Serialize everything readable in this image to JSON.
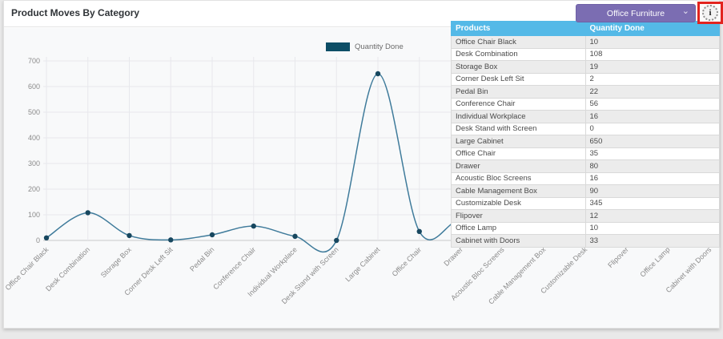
{
  "header": {
    "title": "Product Moves By Category",
    "dropdown": {
      "selected": "Office Furniture",
      "chevron": "⌄"
    },
    "info_button": {
      "glyph": "i"
    }
  },
  "legend": {
    "label": "Quantity Done"
  },
  "colors": {
    "accent_purple": "#7b6db2",
    "table_header_blue": "#54b9e7",
    "line": "#3f7b9b",
    "point": "#17475f",
    "legend_swatch": "#0d4e66",
    "annotation_red": "#e2241f",
    "grid": "#e7e8ec",
    "axis": "#c9c9c9",
    "tick_text": "#8b8b8b"
  },
  "chart_data": {
    "type": "line",
    "title": "Product Moves By Category",
    "categories": [
      "Office Chair Black",
      "Desk Combination",
      "Storage Box",
      "Corner Desk Left Sit",
      "Pedal Bin",
      "Conference Chair",
      "Individual Workplace",
      "Desk Stand with Screen",
      "Large Cabinet",
      "Office Chair",
      "Drawer",
      "Acoustic Bloc Screens",
      "Cable Management Box",
      "Customizable Desk",
      "Flipover",
      "Office Lamp",
      "Cabinet with Doors"
    ],
    "series": [
      {
        "name": "Quantity Done",
        "values": [
          10,
          108,
          19,
          2,
          22,
          56,
          16,
          0,
          650,
          35,
          80,
          16,
          90,
          345,
          12,
          10,
          33
        ]
      }
    ],
    "xlabel": "",
    "ylabel": "",
    "ylim": [
      0,
      700
    ],
    "ytick_step": 100,
    "grid": true,
    "smooth": true,
    "legend_position": "top-center"
  },
  "table": {
    "headers": [
      "Products",
      "Quantity Done"
    ],
    "rows": [
      [
        "Office Chair Black",
        "10"
      ],
      [
        "Desk Combination",
        "108"
      ],
      [
        "Storage Box",
        "19"
      ],
      [
        "Corner Desk Left Sit",
        "2"
      ],
      [
        "Pedal Bin",
        "22"
      ],
      [
        "Conference Chair",
        "56"
      ],
      [
        "Individual Workplace",
        "16"
      ],
      [
        "Desk Stand with Screen",
        "0"
      ],
      [
        "Large Cabinet",
        "650"
      ],
      [
        "Office Chair",
        "35"
      ],
      [
        "Drawer",
        "80"
      ],
      [
        "Acoustic Bloc Screens",
        "16"
      ],
      [
        "Cable Management Box",
        "90"
      ],
      [
        "Customizable Desk",
        "345"
      ],
      [
        "Flipover",
        "12"
      ],
      [
        "Office Lamp",
        "10"
      ],
      [
        "Cabinet with Doors",
        "33"
      ]
    ]
  }
}
